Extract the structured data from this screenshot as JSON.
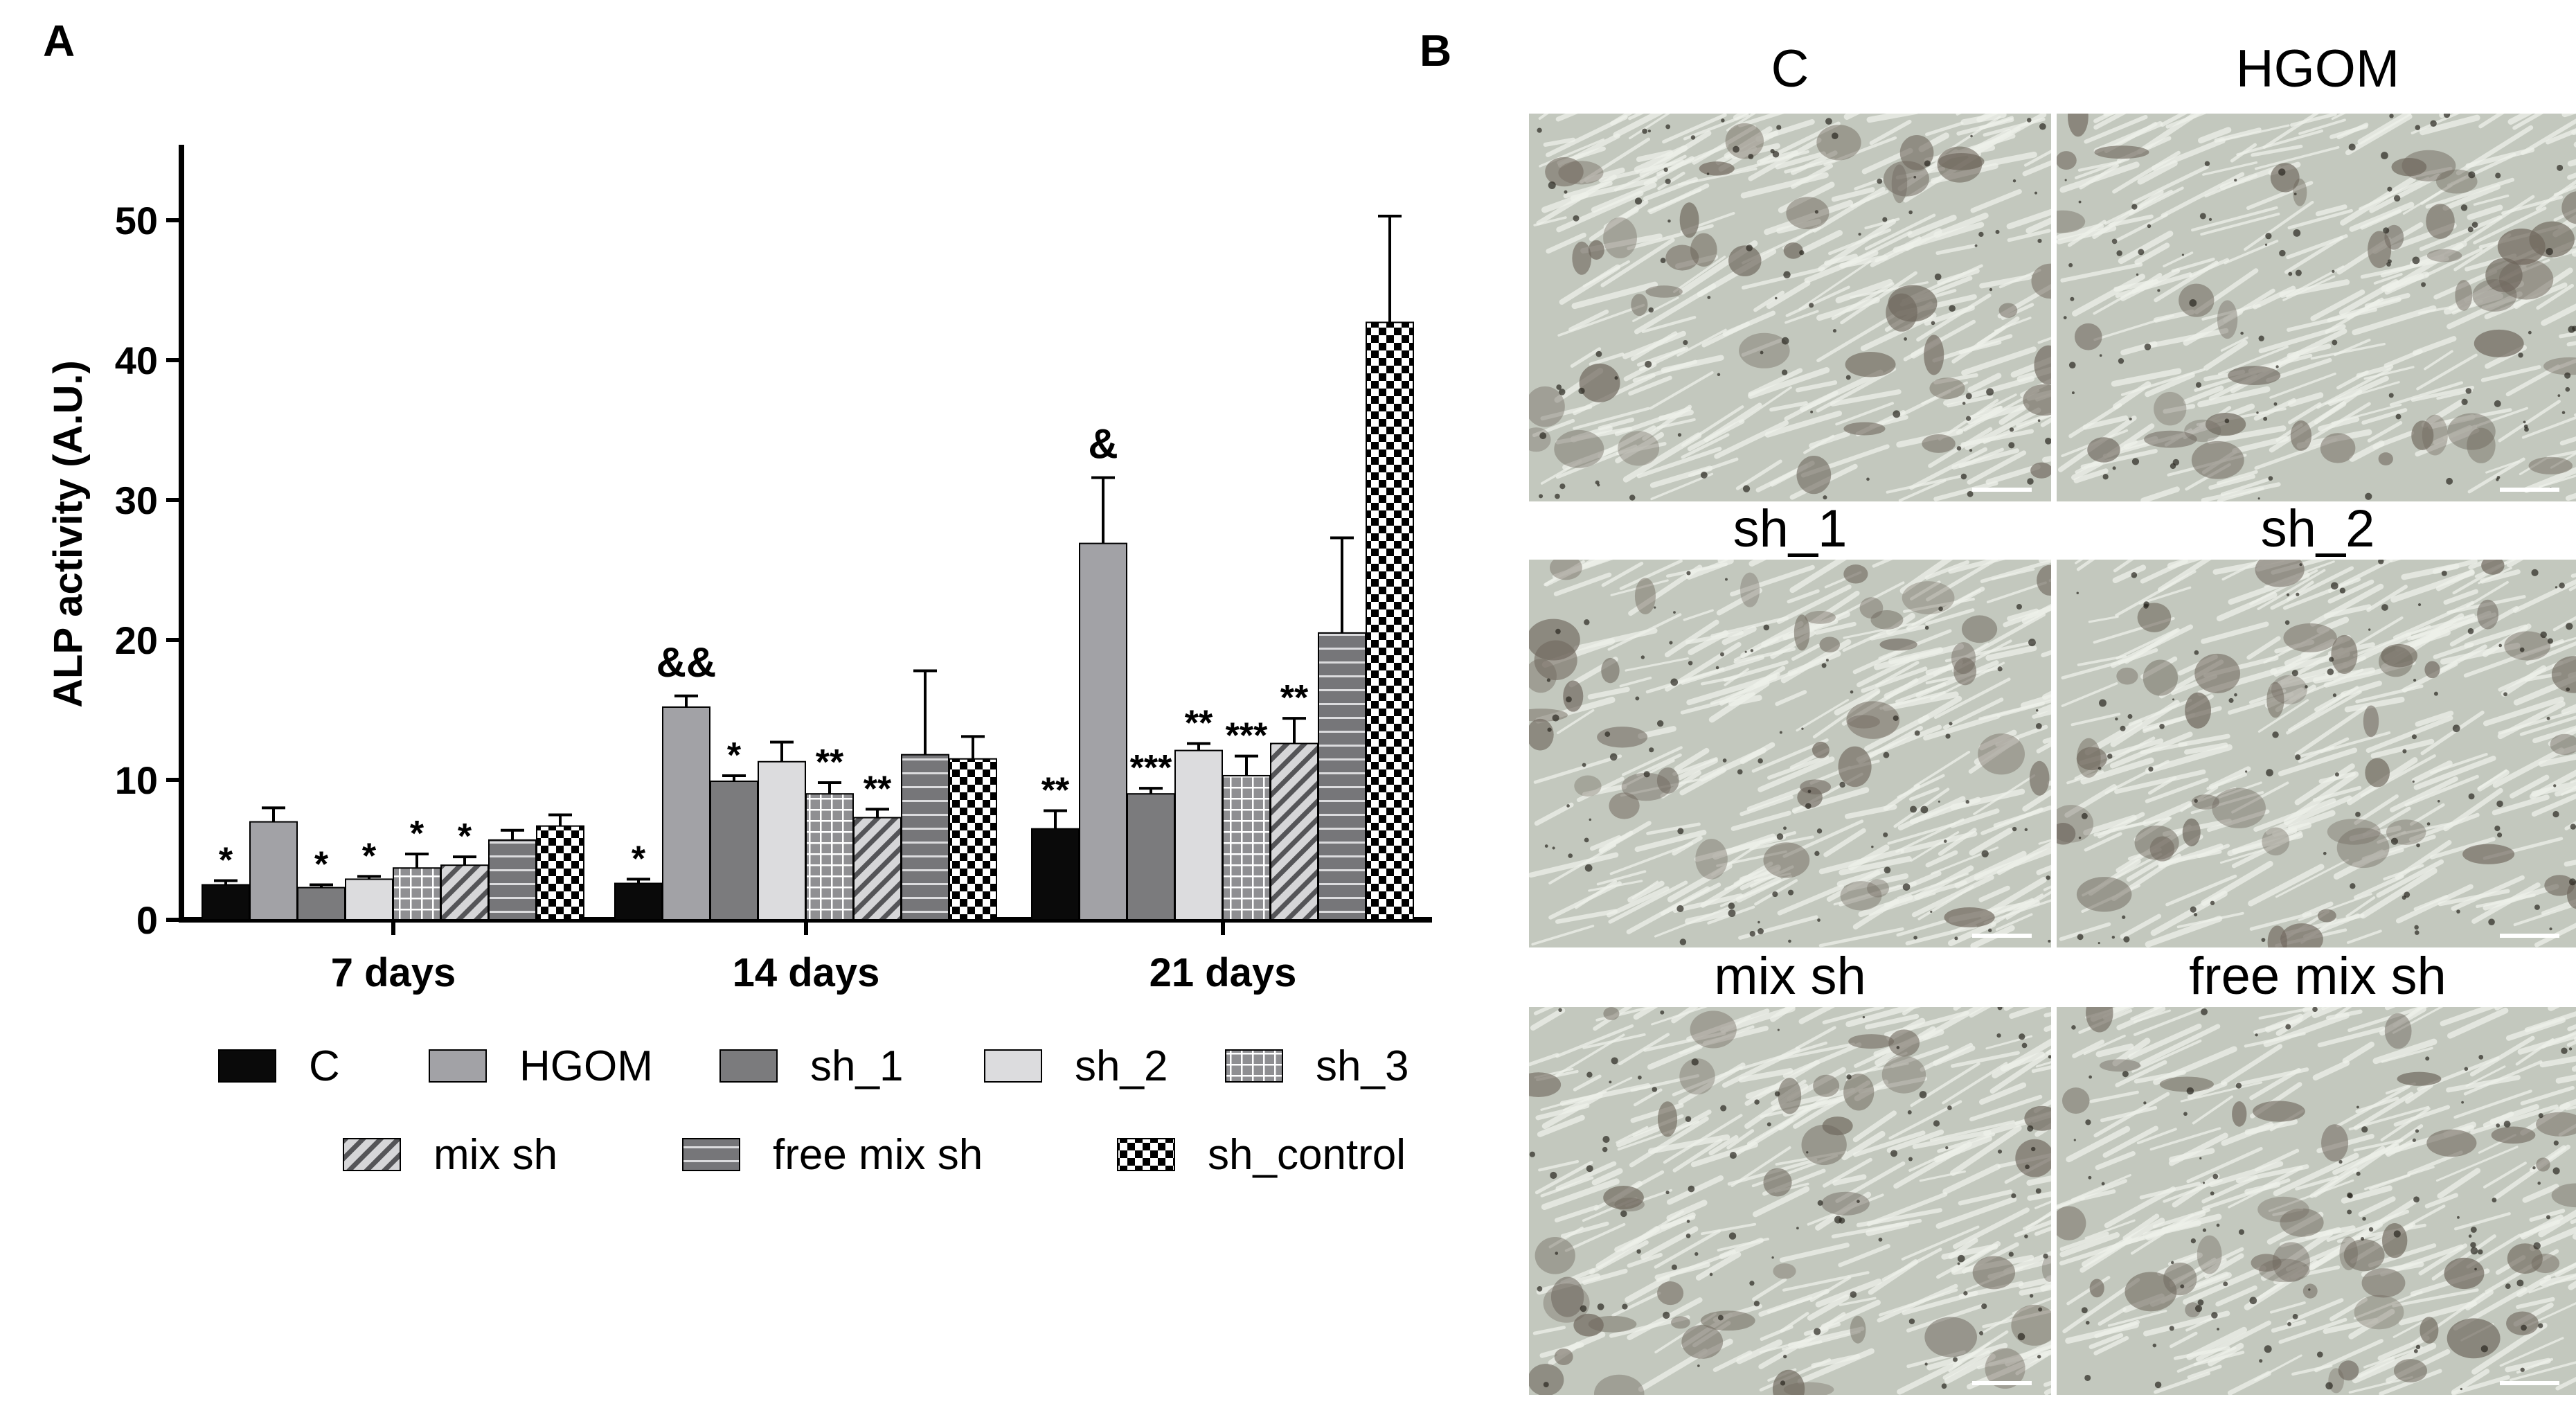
{
  "panels": {
    "a": "A",
    "b": "B"
  },
  "chart_data": {
    "type": "bar",
    "title": "",
    "xlabel": "",
    "ylabel": "ALP activity (A.U.)",
    "ylim": [
      0,
      55
    ],
    "yticks": [
      0,
      10,
      20,
      30,
      40,
      50
    ],
    "grid": false,
    "legend_position": "bottom",
    "categories": [
      "7 days",
      "14 days",
      "21 days"
    ],
    "series": [
      {
        "name": "C",
        "values": [
          2.5,
          2.6,
          6.5
        ],
        "errors": [
          0.3,
          0.3,
          1.3
        ],
        "annotations": [
          "*",
          "*",
          "**"
        ],
        "fill": "black"
      },
      {
        "name": "HGOM",
        "values": [
          7.0,
          15.2,
          26.9
        ],
        "errors": [
          1.0,
          0.8,
          4.7
        ],
        "annotations": [
          "",
          "&&",
          "&"
        ],
        "fill": "lightgray"
      },
      {
        "name": "sh_1",
        "values": [
          2.3,
          9.9,
          9.0
        ],
        "errors": [
          0.2,
          0.4,
          0.4
        ],
        "annotations": [
          "*",
          "*",
          "***"
        ],
        "fill": "darkgray"
      },
      {
        "name": "sh_2",
        "values": [
          2.9,
          11.3,
          12.1
        ],
        "errors": [
          0.2,
          1.4,
          0.5
        ],
        "annotations": [
          "*",
          "",
          "**"
        ],
        "fill": "palegray"
      },
      {
        "name": "sh_3",
        "values": [
          3.7,
          9.0,
          10.3
        ],
        "errors": [
          1.0,
          0.8,
          1.4
        ],
        "annotations": [
          "*",
          "**",
          "***"
        ],
        "fill": "grid"
      },
      {
        "name": "mix sh",
        "values": [
          3.9,
          7.3,
          12.6
        ],
        "errors": [
          0.6,
          0.6,
          1.8
        ],
        "annotations": [
          "*",
          "**",
          "**"
        ],
        "fill": "diagonal"
      },
      {
        "name": "free mix sh",
        "values": [
          5.7,
          11.8,
          20.5
        ],
        "errors": [
          0.7,
          6.0,
          6.8
        ],
        "annotations": [
          "",
          "",
          ""
        ],
        "fill": "horizontal"
      },
      {
        "name": "sh_control",
        "values": [
          6.7,
          11.5,
          42.7
        ],
        "errors": [
          0.8,
          1.6,
          7.6
        ],
        "annotations": [
          "",
          "",
          ""
        ],
        "fill": "checker"
      }
    ]
  },
  "micrographs": [
    {
      "label": "C"
    },
    {
      "label": "HGOM"
    },
    {
      "label": "sh_1"
    },
    {
      "label": "sh_2"
    },
    {
      "label": "mix sh"
    },
    {
      "label": "free mix sh"
    }
  ],
  "colors": {
    "black": "#0a0a0a",
    "lightgray": "#a2a2a6",
    "darkgray": "#7b7b7d",
    "palegray": "#dcdcde",
    "axis": "#000000",
    "micro_bg": "#c3c8be",
    "micro_streak": "#eef1ea",
    "micro_dark": "#6e665c"
  }
}
